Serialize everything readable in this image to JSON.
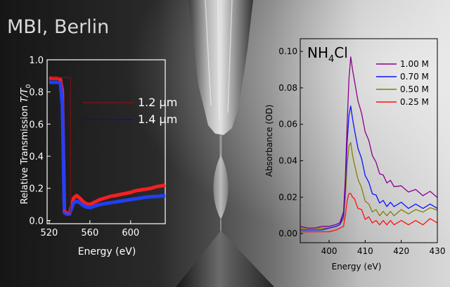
{
  "banner": "MBI, Berlin",
  "chart_data": [
    {
      "type": "line",
      "xlabel": "Energy (eV)",
      "ylabel_main": "Relative Transmission ",
      "ylabel_var": "T/T",
      "ylabel_sub": "0",
      "xlim": [
        518,
        634
      ],
      "ylim": [
        -0.02,
        1.0
      ],
      "xticks": [
        "520",
        "560",
        "600"
      ],
      "xtick_values": [
        520,
        560,
        600
      ],
      "yticks": [
        "0.0",
        "0.2",
        "0.4",
        "0.6",
        "0.8",
        "1.0"
      ],
      "ytick_values": [
        0.0,
        0.2,
        0.4,
        0.6,
        0.8,
        1.0
      ],
      "grid": false,
      "legend_position": "top-right",
      "series": [
        {
          "name": "1.2 µm",
          "color": "#ff2020",
          "line_color": "#8b1010",
          "x": [
            520,
            524,
            528,
            531,
            533,
            535,
            537,
            540,
            542,
            544,
            547,
            550,
            553,
            556,
            560,
            565,
            570,
            575,
            580,
            585,
            590,
            595,
            600,
            605,
            610,
            615,
            620,
            625,
            630,
            634
          ],
          "y": [
            0.885,
            0.885,
            0.885,
            0.88,
            0.81,
            0.06,
            0.045,
            0.045,
            0.09,
            0.14,
            0.155,
            0.14,
            0.12,
            0.105,
            0.1,
            0.115,
            0.13,
            0.14,
            0.15,
            0.155,
            0.162,
            0.168,
            0.175,
            0.185,
            0.19,
            0.195,
            0.2,
            0.21,
            0.215,
            0.22
          ]
        },
        {
          "name": "1.4 µm",
          "color": "#2040ff",
          "line_color": "#101080",
          "x": [
            520,
            524,
            528,
            531,
            533,
            535,
            537,
            540,
            542,
            544,
            547,
            550,
            553,
            556,
            560,
            565,
            570,
            575,
            580,
            585,
            590,
            595,
            600,
            605,
            610,
            615,
            620,
            625,
            630,
            634
          ],
          "y": [
            0.86,
            0.86,
            0.86,
            0.855,
            0.72,
            0.05,
            0.04,
            0.04,
            0.075,
            0.11,
            0.12,
            0.11,
            0.095,
            0.085,
            0.08,
            0.09,
            0.1,
            0.105,
            0.11,
            0.115,
            0.12,
            0.125,
            0.13,
            0.135,
            0.14,
            0.145,
            0.148,
            0.15,
            0.152,
            0.155
          ]
        }
      ]
    },
    {
      "type": "line",
      "title": "NH",
      "title_sub": "4",
      "title_tail": "Cl",
      "xlabel": "Energy (eV)",
      "ylabel": "Absorbance (OD)",
      "xlim": [
        392,
        430
      ],
      "ylim": [
        -0.005,
        0.107
      ],
      "xticks": [
        "400",
        "410",
        "420",
        "430"
      ],
      "xtick_values": [
        400,
        410,
        420,
        430
      ],
      "yticks": [
        "0.00",
        "0.02",
        "0.04",
        "0.06",
        "0.08",
        "0.10"
      ],
      "ytick_values": [
        0.0,
        0.02,
        0.04,
        0.06,
        0.08,
        0.1
      ],
      "grid": false,
      "legend_position": "top-right",
      "series": [
        {
          "name": "1.00 M",
          "color": "#8b008b",
          "x": [
            392,
            394,
            396,
            398,
            400,
            402,
            403,
            404,
            404.5,
            405,
            405.5,
            406,
            406.5,
            407,
            408,
            409,
            410,
            411,
            412,
            413,
            414,
            415,
            416,
            417,
            418,
            420,
            422,
            424,
            426,
            428,
            430
          ],
          "y": [
            0.004,
            0.003,
            0.003,
            0.004,
            0.004,
            0.005,
            0.006,
            0.012,
            0.03,
            0.06,
            0.085,
            0.097,
            0.09,
            0.083,
            0.074,
            0.065,
            0.057,
            0.05,
            0.044,
            0.038,
            0.034,
            0.031,
            0.029,
            0.028,
            0.027,
            0.025,
            0.024,
            0.023,
            0.022,
            0.022,
            0.021
          ]
        },
        {
          "name": "0.70 M",
          "color": "#1010ff",
          "x": [
            392,
            394,
            396,
            398,
            400,
            402,
            403,
            404,
            404.5,
            405,
            405.5,
            406,
            406.5,
            407,
            408,
            409,
            410,
            411,
            412,
            413,
            414,
            415,
            416,
            417,
            418,
            420,
            422,
            424,
            426,
            428,
            430
          ],
          "y": [
            0.002,
            0.002,
            0.002,
            0.002,
            0.003,
            0.004,
            0.005,
            0.01,
            0.025,
            0.05,
            0.065,
            0.07,
            0.063,
            0.056,
            0.048,
            0.04,
            0.033,
            0.027,
            0.023,
            0.02,
            0.018,
            0.017,
            0.016,
            0.016,
            0.016,
            0.016,
            0.015,
            0.015,
            0.015,
            0.015,
            0.015
          ]
        },
        {
          "name": "0.50 M",
          "color": "#808000",
          "x": [
            392,
            394,
            396,
            398,
            400,
            402,
            403,
            404,
            404.5,
            405,
            405.5,
            406,
            406.5,
            407,
            408,
            409,
            410,
            411,
            412,
            413,
            414,
            415,
            416,
            417,
            418,
            420,
            422,
            424,
            426,
            428,
            430
          ],
          "y": [
            0.003,
            0.003,
            0.003,
            0.003,
            0.003,
            0.004,
            0.005,
            0.008,
            0.02,
            0.038,
            0.048,
            0.05,
            0.043,
            0.037,
            0.031,
            0.024,
            0.019,
            0.015,
            0.013,
            0.012,
            0.011,
            0.011,
            0.011,
            0.011,
            0.011,
            0.012,
            0.012,
            0.012,
            0.013,
            0.013,
            0.014
          ]
        },
        {
          "name": "0.25 M",
          "color": "#ff1010",
          "x": [
            392,
            394,
            396,
            398,
            400,
            402,
            403,
            404,
            404.5,
            405,
            405.5,
            406,
            406.5,
            407,
            408,
            409,
            410,
            411,
            412,
            413,
            414,
            415,
            416,
            417,
            418,
            420,
            422,
            424,
            426,
            428,
            430
          ],
          "y": [
            0.001,
            0.001,
            0.001,
            0.001,
            0.001,
            0.002,
            0.003,
            0.004,
            0.01,
            0.018,
            0.022,
            0.022,
            0.02,
            0.018,
            0.015,
            0.012,
            0.009,
            0.008,
            0.007,
            0.006,
            0.006,
            0.006,
            0.006,
            0.006,
            0.006,
            0.006,
            0.006,
            0.006,
            0.006,
            0.007,
            0.007
          ]
        }
      ]
    }
  ]
}
